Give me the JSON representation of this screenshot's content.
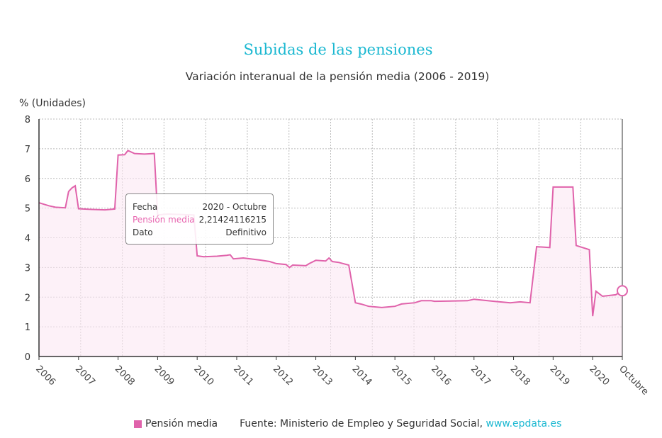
{
  "chart_data": {
    "type": "area",
    "title": "Subidas de las pensiones",
    "subtitle": "Variación interanual de la pensión media (2006 - 2019)",
    "ylabel": "% (Unidades)",
    "ylim": [
      0,
      8
    ],
    "yticks": [
      "0",
      "1",
      "2",
      "3",
      "4",
      "5",
      "6",
      "7",
      "8"
    ],
    "xlim": [
      "2006-01",
      "2020-10"
    ],
    "xticks": [
      {
        "date": "2006-01",
        "label": "2006"
      },
      {
        "date": "2007-01",
        "label": "2007"
      },
      {
        "date": "2008-01",
        "label": "2008"
      },
      {
        "date": "2009-01",
        "label": "2009"
      },
      {
        "date": "2010-01",
        "label": "2010"
      },
      {
        "date": "2011-01",
        "label": "2011"
      },
      {
        "date": "2012-01",
        "label": "2012"
      },
      {
        "date": "2013-01",
        "label": "2013"
      },
      {
        "date": "2014-01",
        "label": "2014"
      },
      {
        "date": "2015-01",
        "label": "2015"
      },
      {
        "date": "2016-01",
        "label": "2016"
      },
      {
        "date": "2017-01",
        "label": "2017"
      },
      {
        "date": "2018-01",
        "label": "2018"
      },
      {
        "date": "2019-01",
        "label": "2019"
      },
      {
        "date": "2020-01",
        "label": "2020"
      },
      {
        "date": "2020-10",
        "label": "Octubre"
      }
    ],
    "grid": true,
    "legend_placement": "bottom",
    "series": [
      {
        "name": "Pensión media",
        "color": "#e063ab",
        "points": [
          [
            "2006-01",
            5.18
          ],
          [
            "2006-04",
            5.08
          ],
          [
            "2006-06",
            5.03
          ],
          [
            "2006-09",
            5.01
          ],
          [
            "2006-10",
            5.56
          ],
          [
            "2006-11",
            5.68
          ],
          [
            "2006-12",
            5.75
          ],
          [
            "2007-01",
            4.98
          ],
          [
            "2007-04",
            4.96
          ],
          [
            "2007-09",
            4.94
          ],
          [
            "2007-12",
            4.97
          ],
          [
            "2008-01",
            6.79
          ],
          [
            "2008-03",
            6.8
          ],
          [
            "2008-04",
            6.94
          ],
          [
            "2008-06",
            6.84
          ],
          [
            "2008-09",
            6.82
          ],
          [
            "2008-12",
            6.84
          ],
          [
            "2009-01",
            4.77
          ],
          [
            "2009-04",
            4.8
          ],
          [
            "2009-12",
            4.77
          ],
          [
            "2010-01",
            3.39
          ],
          [
            "2010-03",
            3.36
          ],
          [
            "2010-07",
            3.38
          ],
          [
            "2010-10",
            3.41
          ],
          [
            "2010-11",
            3.43
          ],
          [
            "2010-12",
            3.29
          ],
          [
            "2011-03",
            3.32
          ],
          [
            "2011-08",
            3.25
          ],
          [
            "2011-11",
            3.2
          ],
          [
            "2012-01",
            3.13
          ],
          [
            "2012-04",
            3.1
          ],
          [
            "2012-05",
            3.0
          ],
          [
            "2012-06",
            3.08
          ],
          [
            "2012-10",
            3.06
          ],
          [
            "2012-11",
            3.13
          ],
          [
            "2013-01",
            3.24
          ],
          [
            "2013-04",
            3.22
          ],
          [
            "2013-05",
            3.32
          ],
          [
            "2013-06",
            3.2
          ],
          [
            "2013-08",
            3.17
          ],
          [
            "2013-11",
            3.08
          ],
          [
            "2014-01",
            1.81
          ],
          [
            "2014-03",
            1.76
          ],
          [
            "2014-05",
            1.69
          ],
          [
            "2014-09",
            1.65
          ],
          [
            "2015-01",
            1.69
          ],
          [
            "2015-03",
            1.77
          ],
          [
            "2015-07",
            1.81
          ],
          [
            "2015-09",
            1.88
          ],
          [
            "2015-12",
            1.88
          ],
          [
            "2016-01",
            1.86
          ],
          [
            "2016-11",
            1.88
          ],
          [
            "2017-01",
            1.93
          ],
          [
            "2017-07",
            1.86
          ],
          [
            "2017-12",
            1.81
          ],
          [
            "2018-03",
            1.84
          ],
          [
            "2018-06",
            1.81
          ],
          [
            "2018-08",
            3.7
          ],
          [
            "2018-12",
            3.67
          ],
          [
            "2019-01",
            5.71
          ],
          [
            "2019-05",
            5.71
          ],
          [
            "2019-07",
            5.71
          ],
          [
            "2019-08",
            3.74
          ],
          [
            "2019-12",
            3.6
          ],
          [
            "2020-01",
            1.36
          ],
          [
            "2020-02",
            2.2
          ],
          [
            "2020-04",
            2.03
          ],
          [
            "2020-08",
            2.08
          ],
          [
            "2020-10",
            2.21424116215
          ]
        ]
      }
    ]
  },
  "tooltip": {
    "rows": [
      {
        "label": "Fecha",
        "value": "2020 - Octubre"
      },
      {
        "label": "Pensión media",
        "value": "2,21424116215"
      },
      {
        "label": "Dato",
        "value": "Definitivo"
      }
    ]
  },
  "legend": {
    "label": "Pensión media"
  },
  "source": {
    "text": "Fuente: Ministerio de Empleo y Seguridad Social, ",
    "link": "www.epdata.es"
  }
}
